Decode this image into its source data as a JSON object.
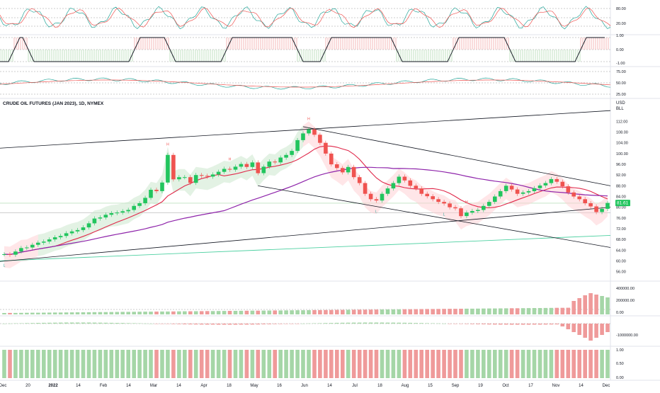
{
  "chart_data": {
    "type": "line",
    "title": "CRUDE OIL FUTURES (JAN 2023), 1D, NYMEX",
    "currency": "USD",
    "unit": "BLL",
    "current_price": "81.61",
    "xaxis_labels": [
      "Dec",
      "20",
      "2022",
      "14",
      "Feb",
      "14",
      "Mar",
      "14",
      "Apr",
      "18",
      "May",
      "16",
      "Jun",
      "14",
      "Jul",
      "18",
      "Aug",
      "15",
      "Sep",
      "19",
      "Oct",
      "17",
      "Nov",
      "14",
      "Dec"
    ],
    "main_price_axis": [
      112.0,
      108.0,
      104.0,
      100.0,
      96.0,
      92.0,
      88.0,
      84.0,
      80.0,
      76.0,
      72.0,
      68.0,
      64.0,
      60.0,
      56.0
    ],
    "ylim": [
      53.0,
      115.0
    ],
    "close_series": [
      62.5,
      62.3,
      63.5,
      64.8,
      65.0,
      66.0,
      66.8,
      67.2,
      68.0,
      68.8,
      69.3,
      70.3,
      71.0,
      71.5,
      72.5,
      74.0,
      75.8,
      76.2,
      77.2,
      77.8,
      78.0,
      78.5,
      79.0,
      80.5,
      81.5,
      83.5,
      86.5,
      86.0,
      89.2,
      99.5,
      90.4,
      91.2,
      91.2,
      89.1,
      92.0,
      91.7,
      91.4,
      92.2,
      93.2,
      94.3,
      94.0,
      95.1,
      96.1,
      95.0,
      96.7,
      92.7,
      95.1,
      97.0,
      96.7,
      98.5,
      99.5,
      101.0,
      105.0,
      107.5,
      109.0,
      107.0,
      104.0,
      100.0,
      96.0,
      94.6,
      93.0,
      95.0,
      91.2,
      89.0,
      85.0,
      83.0,
      82.5,
      85.0,
      87.0,
      89.0,
      91.4,
      90.0,
      88.0,
      87.0,
      85.0,
      84.1,
      83.0,
      82.0,
      81.4,
      80.0,
      79.6,
      76.7,
      78.0,
      78.6,
      79.0,
      80.5,
      82.0,
      84.0,
      86.0,
      88.0,
      86.6,
      85.0,
      85.5,
      86.0,
      87.1,
      88.1,
      89.0,
      90.5,
      89.5,
      87.8,
      85.5,
      84.0,
      83.0,
      81.5,
      80.3,
      78.2,
      79.4,
      81.6
    ],
    "series": [
      {
        "name": "",
        "color": "#d1d4dc",
        "values": []
      }
    ],
    "annotations": [
      {
        "label": "H",
        "index": 29
      },
      {
        "label": "H",
        "index": 40
      },
      {
        "label": "H",
        "index": 54
      },
      {
        "label": "H",
        "index": 82
      },
      {
        "label": "L",
        "index": 0
      },
      {
        "label": "L",
        "index": 66
      },
      {
        "label": "L",
        "index": 78
      }
    ],
    "volume_axis": [
      "400000.00",
      "200000.00",
      "0.00"
    ],
    "osc_axis": [
      "-1000000.00"
    ],
    "stoch_axis": [
      "80.00",
      "20.00"
    ],
    "binary_axis": [
      "1.00",
      "0.00",
      "-1.00"
    ],
    "rsi_axis": [
      "75.00",
      "50.00",
      "25.00"
    ],
    "bars_axis": [
      "1.00",
      "0.50",
      "0.00"
    ]
  },
  "colors": {
    "up": "#26a69a",
    "up_bright": "#22c55e",
    "down": "#ef5350",
    "down_dark": "#d32f2f",
    "ma50": "#e0284a",
    "ma200": "#8e24aa",
    "ma_long": "#4dd0a1",
    "trend": "#131722",
    "cloud_red": "#ffcdd2",
    "cloud_green": "#c8e6c9",
    "price_tag": "#22c55e"
  }
}
